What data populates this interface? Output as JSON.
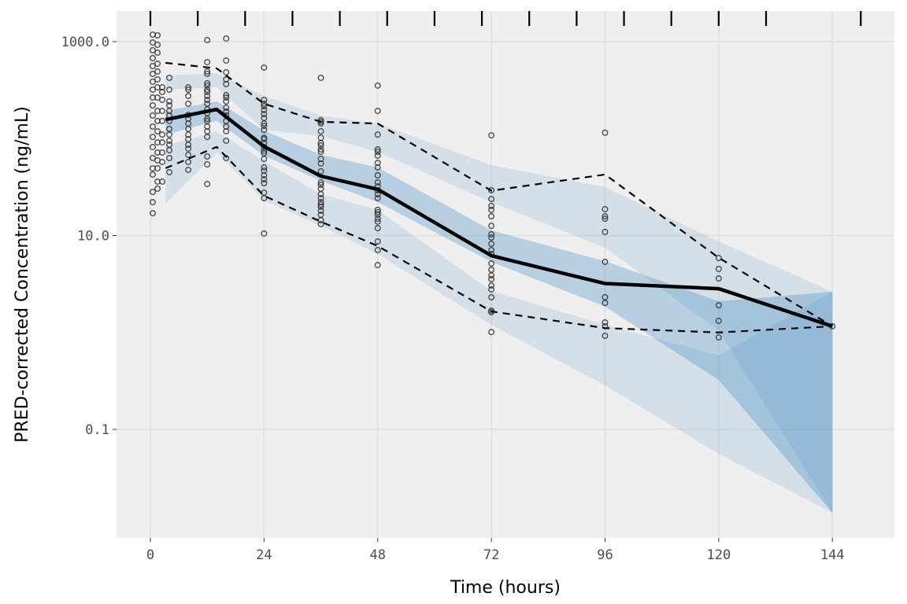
{
  "chart_data": {
    "type": "line",
    "title": "",
    "xlabel": "Time (hours)",
    "ylabel": "PRED-corrected Concentration (ng/mL)",
    "xlim": [
      -7.15,
      157.1
    ],
    "ylim": [
      0.0076,
      2070
    ],
    "y_scale": "log10",
    "grid": true,
    "legend": "none",
    "x_ticks": [
      0,
      24,
      48,
      72,
      96,
      120,
      144
    ],
    "x_tick_labels": [
      "0",
      "24",
      "48",
      "72",
      "96",
      "120",
      "144"
    ],
    "y_ticks": [
      1000,
      10,
      0.1
    ],
    "y_tick_labels": [
      "1000.0",
      "10.0",
      "0.1"
    ],
    "bin_rug": [
      0,
      10,
      20,
      30,
      40,
      50,
      60,
      70,
      80,
      90,
      100,
      110,
      120,
      130,
      150
    ],
    "colors": {
      "panel": "#efefef",
      "grid": "#e2e2e2",
      "band": "#3182bd",
      "line": "#000000",
      "points": "#333333"
    },
    "bin_x": [
      3.2,
      14,
      24,
      36,
      48,
      72,
      96,
      120,
      144
    ],
    "observed_median": [
      157,
      200,
      83,
      41,
      30,
      6.2,
      3.2,
      2.83,
      1.16
    ],
    "observed_upper": [
      604,
      530,
      229,
      149,
      143,
      29,
      42.6,
      5.9,
      1.16
    ],
    "observed_lower": [
      49.5,
      82,
      25.7,
      13.9,
      7.8,
      1.65,
      1.11,
      1.0,
      1.16
    ],
    "ci_upper": {
      "low": [
        320,
        338,
        123,
        106,
        73,
        22.1,
        7.48,
        1.05,
        0.0138
      ],
      "high": [
        448,
        473,
        275,
        173,
        143,
        53.2,
        31.6,
        8.7,
        2.63
      ]
    },
    "ci_median": {
      "low": [
        110,
        152,
        66.7,
        36.6,
        22.1,
        5.35,
        1.85,
        0.324,
        0.0138
      ],
      "high": [
        193,
        242,
        121,
        68,
        50.4,
        11.3,
        5.44,
        2.1,
        2.63
      ]
    },
    "ci_lower": {
      "low": [
        21.3,
        71.8,
        23.0,
        12.6,
        6.45,
        1.2,
        0.284,
        0.056,
        0.0138
      ],
      "high": [
        84.9,
        119,
        58.5,
        26.7,
        18.4,
        2.68,
        1.2,
        0.58,
        2.63
      ]
    },
    "points": [
      [
        0.5,
        1183
      ],
      [
        0.5,
        981
      ],
      [
        0.5,
        815
      ],
      [
        0.5,
        676
      ],
      [
        0.5,
        560
      ],
      [
        0.5,
        465
      ],
      [
        0.5,
        386
      ],
      [
        0.5,
        320
      ],
      [
        0.5,
        265
      ],
      [
        0.5,
        220
      ],
      [
        0.5,
        173
      ],
      [
        0.5,
        133
      ],
      [
        0.5,
        104
      ],
      [
        0.5,
        81.8
      ],
      [
        0.5,
        63.0
      ],
      [
        0.5,
        49.4
      ],
      [
        0.5,
        42.6
      ],
      [
        0.5,
        28.2
      ],
      [
        0.5,
        22.1
      ],
      [
        0.5,
        17.0
      ],
      [
        1.5,
        1161
      ],
      [
        1.5,
        929
      ],
      [
        1.5,
        770
      ],
      [
        1.5,
        593
      ],
      [
        1.5,
        492
      ],
      [
        1.5,
        408
      ],
      [
        1.5,
        338
      ],
      [
        1.5,
        265
      ],
      [
        1.5,
        193
      ],
      [
        1.5,
        152
      ],
      [
        1.5,
        119
      ],
      [
        1.5,
        91.5
      ],
      [
        1.5,
        71.8
      ],
      [
        1.5,
        59.6
      ],
      [
        1.5,
        49.4
      ],
      [
        1.5,
        36.0
      ],
      [
        1.5,
        30.4
      ],
      [
        2.5,
        338
      ],
      [
        2.5,
        303
      ],
      [
        2.5,
        251
      ],
      [
        2.5,
        193
      ],
      [
        2.5,
        152
      ],
      [
        2.5,
        110
      ],
      [
        2.5,
        91.5
      ],
      [
        2.5,
        71.8
      ],
      [
        2.5,
        57.4
      ],
      [
        2.5,
        36.0
      ],
      [
        4,
        424
      ],
      [
        4,
        320
      ],
      [
        4,
        242
      ],
      [
        4,
        220
      ],
      [
        4,
        193
      ],
      [
        4,
        173
      ],
      [
        4,
        152
      ],
      [
        4,
        126
      ],
      [
        4,
        110
      ],
      [
        4,
        95
      ],
      [
        4,
        86.5
      ],
      [
        4,
        75.9
      ],
      [
        4,
        63.0
      ],
      [
        4,
        45.0
      ],
      [
        8,
        338
      ],
      [
        8,
        320
      ],
      [
        8,
        275
      ],
      [
        8,
        229
      ],
      [
        8,
        176
      ],
      [
        8,
        160
      ],
      [
        8,
        143
      ],
      [
        8,
        126
      ],
      [
        8,
        110
      ],
      [
        8,
        98.6
      ],
      [
        8,
        86.5
      ],
      [
        8,
        78.8
      ],
      [
        8,
        67.9
      ],
      [
        8,
        57.4
      ],
      [
        8,
        47.6
      ],
      [
        12,
        1038
      ],
      [
        12,
        615
      ],
      [
        12,
        492
      ],
      [
        12,
        465
      ],
      [
        12,
        372
      ],
      [
        12,
        352
      ],
      [
        12,
        320
      ],
      [
        12,
        303
      ],
      [
        12,
        275
      ],
      [
        12,
        251
      ],
      [
        12,
        229
      ],
      [
        12,
        200
      ],
      [
        12,
        183
      ],
      [
        12,
        160
      ],
      [
        12,
        152
      ],
      [
        12,
        133
      ],
      [
        12,
        119
      ],
      [
        12,
        104
      ],
      [
        12,
        65.4
      ],
      [
        12,
        54.2
      ],
      [
        12,
        34.0
      ],
      [
        16,
        1077
      ],
      [
        16,
        639
      ],
      [
        16,
        483
      ],
      [
        16,
        408
      ],
      [
        16,
        365
      ],
      [
        16,
        281
      ],
      [
        16,
        265
      ],
      [
        16,
        242
      ],
      [
        16,
        208
      ],
      [
        16,
        190
      ],
      [
        16,
        173
      ],
      [
        16,
        152
      ],
      [
        16,
        133
      ],
      [
        16,
        119
      ],
      [
        16,
        95
      ],
      [
        16,
        63.0
      ],
      [
        24,
        540
      ],
      [
        24,
        251
      ],
      [
        24,
        229
      ],
      [
        24,
        216
      ],
      [
        24,
        197
      ],
      [
        24,
        179
      ],
      [
        24,
        163
      ],
      [
        24,
        143
      ],
      [
        24,
        135
      ],
      [
        24,
        123
      ],
      [
        24,
        102
      ],
      [
        24,
        98.6
      ],
      [
        24,
        89.8
      ],
      [
        24,
        81.8
      ],
      [
        24,
        74.5
      ],
      [
        24,
        70.5
      ],
      [
        24,
        61.8
      ],
      [
        24,
        50.4
      ],
      [
        24,
        46.7
      ],
      [
        24,
        41.8
      ],
      [
        24,
        38.0
      ],
      [
        24,
        34.7
      ],
      [
        24,
        27.7
      ],
      [
        24,
        24.3
      ],
      [
        24,
        10.5
      ],
      [
        36,
        424
      ],
      [
        36,
        155
      ],
      [
        36,
        149
      ],
      [
        36,
        143
      ],
      [
        36,
        119
      ],
      [
        36,
        102
      ],
      [
        36,
        89.8
      ],
      [
        36,
        84.9
      ],
      [
        36,
        77.3
      ],
      [
        36,
        73.1
      ],
      [
        36,
        61.8
      ],
      [
        36,
        55.3
      ],
      [
        36,
        45.9
      ],
      [
        36,
        35.3
      ],
      [
        36,
        33.4
      ],
      [
        36,
        30.4
      ],
      [
        36,
        26.7
      ],
      [
        36,
        24.3
      ],
      [
        36,
        22.1
      ],
      [
        36,
        20.9
      ],
      [
        36,
        19.8
      ],
      [
        36,
        18.0
      ],
      [
        36,
        16.4
      ],
      [
        36,
        14.4
      ],
      [
        36,
        13.1
      ],
      [
        48,
        352
      ],
      [
        48,
        193
      ],
      [
        48,
        110
      ],
      [
        48,
        77.3
      ],
      [
        48,
        73.1
      ],
      [
        48,
        66.7
      ],
      [
        48,
        56.3
      ],
      [
        48,
        50.4
      ],
      [
        48,
        41.8
      ],
      [
        48,
        35.3
      ],
      [
        48,
        32.2
      ],
      [
        48,
        29.3
      ],
      [
        48,
        26.7
      ],
      [
        48,
        24.3
      ],
      [
        48,
        18.4
      ],
      [
        48,
        17.4
      ],
      [
        48,
        16.4
      ],
      [
        48,
        14.9
      ],
      [
        48,
        13.9
      ],
      [
        48,
        11.9
      ],
      [
        48,
        8.69
      ],
      [
        48,
        7.08
      ],
      [
        48,
        4.96
      ],
      [
        72,
        108
      ],
      [
        72,
        29.3
      ],
      [
        72,
        23.8
      ],
      [
        72,
        20.2
      ],
      [
        72,
        18.4
      ],
      [
        72,
        15.8
      ],
      [
        72,
        12.6
      ],
      [
        72,
        10.3
      ],
      [
        72,
        9.55
      ],
      [
        72,
        8.22
      ],
      [
        72,
        7.08
      ],
      [
        72,
        6.44
      ],
      [
        72,
        5.15
      ],
      [
        72,
        4.44
      ],
      [
        72,
        3.89
      ],
      [
        72,
        3.55
      ],
      [
        72,
        3.05
      ],
      [
        72,
        2.78
      ],
      [
        72,
        2.31
      ],
      [
        72,
        1.68
      ],
      [
        72,
        1.62
      ],
      [
        72,
        1.01
      ],
      [
        96,
        115
      ],
      [
        96,
        18.7
      ],
      [
        96,
        15.8
      ],
      [
        96,
        14.9
      ],
      [
        96,
        10.9
      ],
      [
        96,
        5.35
      ],
      [
        96,
        2.31
      ],
      [
        96,
        2.02
      ],
      [
        96,
        1.27
      ],
      [
        96,
        1.16
      ],
      [
        96,
        0.924
      ],
      [
        120,
        5.87
      ],
      [
        120,
        4.52
      ],
      [
        120,
        3.61
      ],
      [
        120,
        1.91
      ],
      [
        120,
        1.32
      ],
      [
        120,
        0.89
      ],
      [
        144,
        1.16
      ]
    ]
  }
}
